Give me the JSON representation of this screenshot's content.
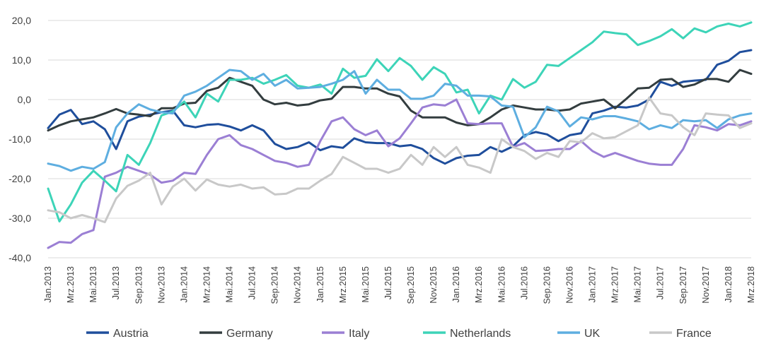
{
  "chart_data": {
    "type": "line",
    "title": "",
    "xlabel": "",
    "ylabel": "",
    "ylim": [
      -40,
      20
    ],
    "y_ticks": [
      "-40,0",
      "-30,0",
      "-20,0",
      "-10,0",
      "0,0",
      "10,0",
      "20,0"
    ],
    "grid": "horizontal",
    "legend_position": "bottom",
    "x_tick_labels": [
      "Jan.2013",
      "Mrz.2013",
      "Mai.2013",
      "Jul.2013",
      "Sep.2013",
      "Nov.2013",
      "Jan.2014",
      "Mrz.2014",
      "Mai.2014",
      "Jul.2014",
      "Sep.2014",
      "Nov.2014",
      "Jan.2015",
      "Mrz.2015",
      "Mai.2015",
      "Jul.2015",
      "Sep.2015",
      "Nov.2015",
      "Jan.2016",
      "Mrz.2016",
      "Mai.2016",
      "Jul.2016",
      "Sep.2016",
      "Nov.2016",
      "Jan.2017",
      "Mrz.2017",
      "Mai.2017",
      "Jul.2017",
      "Sep.2017",
      "Nov.2017",
      "Jan.2018",
      "Mrz.2018"
    ],
    "x": [
      "2013-01",
      "2013-02",
      "2013-03",
      "2013-04",
      "2013-05",
      "2013-06",
      "2013-07",
      "2013-08",
      "2013-09",
      "2013-10",
      "2013-11",
      "2013-12",
      "2014-01",
      "2014-02",
      "2014-03",
      "2014-04",
      "2014-05",
      "2014-06",
      "2014-07",
      "2014-08",
      "2014-09",
      "2014-10",
      "2014-11",
      "2014-12",
      "2015-01",
      "2015-02",
      "2015-03",
      "2015-04",
      "2015-05",
      "2015-06",
      "2015-07",
      "2015-08",
      "2015-09",
      "2015-10",
      "2015-11",
      "2015-12",
      "2016-01",
      "2016-02",
      "2016-03",
      "2016-04",
      "2016-05",
      "2016-06",
      "2016-07",
      "2016-08",
      "2016-09",
      "2016-10",
      "2016-11",
      "2016-12",
      "2017-01",
      "2017-02",
      "2017-03",
      "2017-04",
      "2017-05",
      "2017-06",
      "2017-07",
      "2017-08",
      "2017-09",
      "2017-10",
      "2017-11",
      "2017-12",
      "2018-01",
      "2018-02",
      "2018-03"
    ],
    "series": [
      {
        "name": "Austria",
        "color": "#1f4e9c",
        "values": [
          -7.2,
          -3.8,
          -2.6,
          -6.2,
          -5.5,
          -7.5,
          -12.5,
          -5.5,
          -4.3,
          -3.8,
          -3.2,
          -2.8,
          -6.5,
          -7.0,
          -6.4,
          -6.2,
          -6.8,
          -7.8,
          -6.5,
          -7.8,
          -11.2,
          -12.5,
          -12.0,
          -10.8,
          -12.8,
          -11.8,
          -12.2,
          -9.8,
          -10.8,
          -11.0,
          -11.0,
          -11.8,
          -11.5,
          -12.5,
          -14.8,
          -16.2,
          -14.8,
          -14.2,
          -14.0,
          -12.0,
          -13.2,
          -11.8,
          -9.0,
          -8.2,
          -8.8,
          -10.5,
          -9.0,
          -8.5,
          -3.5,
          -2.8,
          -1.8,
          -2.0,
          -1.5,
          0.0,
          4.5,
          3.5,
          4.5,
          4.8,
          5.0,
          8.8,
          9.8,
          12.0,
          12.5
        ]
      },
      {
        "name": "Germany",
        "color": "#333d3f",
        "values": [
          -7.8,
          -6.5,
          -5.5,
          -5.0,
          -4.5,
          -3.5,
          -2.4,
          -3.5,
          -3.8,
          -4.2,
          -2.2,
          -2.2,
          -1.0,
          -0.8,
          2.2,
          3.0,
          5.5,
          4.5,
          3.5,
          0.0,
          -1.2,
          -0.8,
          -1.5,
          -1.2,
          -0.2,
          0.2,
          3.2,
          3.2,
          2.8,
          2.8,
          1.5,
          0.8,
          -2.8,
          -4.5,
          -4.5,
          -4.5,
          -5.8,
          -6.5,
          -6.2,
          -4.5,
          -2.5,
          -1.5,
          -2.0,
          -2.5,
          -2.5,
          -2.8,
          -2.5,
          -1.0,
          -0.5,
          0.0,
          -2.2,
          0.2,
          2.8,
          3.0,
          5.0,
          5.2,
          3.2,
          3.8,
          5.2,
          5.2,
          4.5,
          7.5,
          6.5
        ]
      },
      {
        "name": "Italy",
        "color": "#9b7fd4",
        "values": [
          -37.5,
          -36.0,
          -36.2,
          -34.0,
          -33.0,
          -19.5,
          -18.5,
          -17.0,
          -18.0,
          -19.0,
          -21.0,
          -20.5,
          -18.5,
          -18.8,
          -14.0,
          -10.0,
          -9.0,
          -11.5,
          -12.5,
          -14.0,
          -15.5,
          -16.0,
          -17.0,
          -16.5,
          -10.5,
          -5.5,
          -4.5,
          -7.5,
          -9.0,
          -7.8,
          -11.8,
          -9.8,
          -6.0,
          -2.0,
          -1.2,
          -1.5,
          0.0,
          -6.0,
          -6.2,
          -6.0,
          -6.0,
          -12.0,
          -11.0,
          -13.0,
          -12.8,
          -12.5,
          -12.5,
          -10.5,
          -13.0,
          -14.5,
          -13.5,
          -14.5,
          -15.5,
          -16.2,
          -16.5,
          -16.5,
          -12.5,
          -6.5,
          -7.0,
          -7.8,
          -6.2,
          -6.5,
          -5.5
        ]
      },
      {
        "name": "Netherlands",
        "color": "#3dd4b8",
        "values": [
          -22.5,
          -30.8,
          -26.5,
          -21.0,
          -18.0,
          -20.5,
          -23.2,
          -14.0,
          -16.5,
          -11.0,
          -4.0,
          -3.0,
          -0.5,
          -4.5,
          1.5,
          -0.5,
          5.0,
          5.0,
          5.5,
          4.0,
          5.0,
          6.2,
          3.5,
          3.0,
          3.8,
          1.5,
          7.8,
          5.5,
          6.0,
          10.2,
          7.2,
          10.5,
          8.5,
          5.0,
          8.2,
          6.5,
          1.8,
          2.5,
          -3.5,
          1.0,
          0.0,
          5.2,
          3.0,
          4.5,
          8.8,
          8.5,
          10.5,
          12.5,
          14.5,
          17.2,
          16.8,
          16.5,
          13.8,
          14.8,
          16.0,
          17.8,
          15.5,
          18.0,
          17.0,
          18.5,
          19.2,
          18.5,
          19.5
        ]
      },
      {
        "name": "UK",
        "color": "#5eaee0",
        "values": [
          -16.2,
          -16.8,
          -18.0,
          -17.0,
          -17.5,
          -15.8,
          -7.0,
          -3.5,
          -1.2,
          -2.5,
          -3.2,
          -3.5,
          1.0,
          2.0,
          3.5,
          5.5,
          7.5,
          7.2,
          5.0,
          6.5,
          3.5,
          5.0,
          2.8,
          3.0,
          3.2,
          4.0,
          5.0,
          7.2,
          1.5,
          5.0,
          2.5,
          2.5,
          0.2,
          0.2,
          1.0,
          4.0,
          3.5,
          1.0,
          1.0,
          0.8,
          -1.5,
          -1.8,
          -9.5,
          -7.0,
          -1.8,
          -3.0,
          -6.8,
          -4.5,
          -5.0,
          -4.2,
          -4.2,
          -4.8,
          -5.5,
          -7.5,
          -6.5,
          -7.2,
          -5.2,
          -5.5,
          -5.2,
          -7.2,
          -5.0,
          -4.0,
          -3.5
        ]
      },
      {
        "name": "France",
        "color": "#c8c8c8",
        "values": [
          -28.0,
          -28.5,
          -30.0,
          -29.2,
          -30.0,
          -31.0,
          -25.0,
          -21.8,
          -20.5,
          -18.5,
          -26.5,
          -22.0,
          -20.0,
          -23.0,
          -20.2,
          -21.5,
          -22.0,
          -21.5,
          -22.5,
          -22.2,
          -24.0,
          -23.8,
          -22.5,
          -22.5,
          -20.5,
          -18.8,
          -14.5,
          -16.0,
          -17.5,
          -17.5,
          -18.5,
          -17.5,
          -14.0,
          -16.5,
          -12.0,
          -14.5,
          -12.0,
          -16.5,
          -17.2,
          -18.5,
          -10.0,
          -12.0,
          -13.0,
          -15.0,
          -13.5,
          -14.5,
          -10.5,
          -10.8,
          -8.5,
          -9.8,
          -9.5,
          -8.0,
          -6.5,
          0.5,
          -3.5,
          -4.0,
          -7.0,
          -9.0,
          -3.5,
          -3.8,
          -4.0,
          -7.2,
          -6.0
        ]
      }
    ]
  }
}
